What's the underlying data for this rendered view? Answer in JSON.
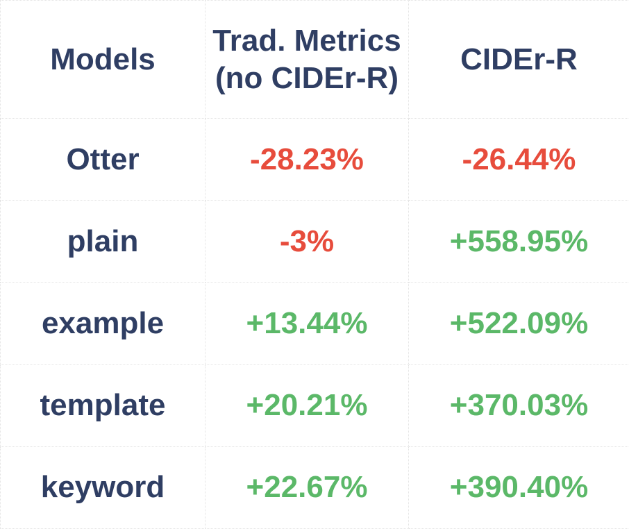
{
  "colors": {
    "header_text": "#2F3E63",
    "negative": "#E74C3C",
    "positive": "#5BB868",
    "border": "#E3E3E3",
    "background": "#FFFFFF"
  },
  "header": {
    "models": "Models",
    "trad_metrics_line1": "Trad. Metrics",
    "trad_metrics_line2": "(no CIDEr-R)",
    "cider_r": "CIDEr-R"
  },
  "chart_data": {
    "type": "table",
    "columns": [
      "Models",
      "Trad. Metrics (no CIDEr-R)",
      "CIDEr-R"
    ],
    "rows": [
      [
        "Otter",
        "-28.23%",
        "-26.44%"
      ],
      [
        "plain",
        "-3%",
        "+558.95%"
      ],
      [
        "example",
        "+13.44%",
        "+522.09%"
      ],
      [
        "template",
        "+20.21%",
        "+370.03%"
      ],
      [
        "keyword",
        "+22.67%",
        "+390.40%"
      ]
    ]
  }
}
